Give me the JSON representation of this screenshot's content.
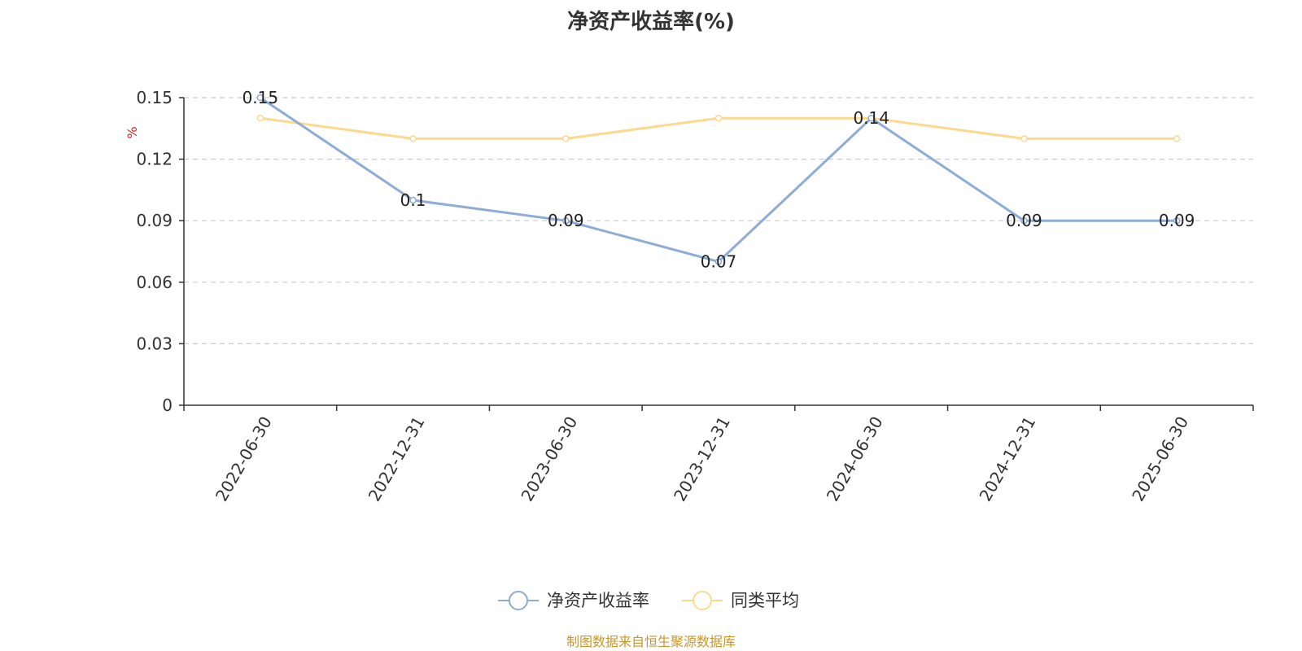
{
  "chart_data": {
    "type": "line",
    "title": "净资产收益率(%)",
    "ylabel": "%",
    "xlabel": "",
    "categories": [
      "2022-06-30",
      "2022-12-31",
      "2023-06-30",
      "2023-12-31",
      "2024-06-30",
      "2024-12-31",
      "2025-06-30"
    ],
    "ylim": [
      0,
      0.15
    ],
    "yticks": [
      "0",
      "0.03",
      "0.06",
      "0.09",
      "0.12",
      "0.15"
    ],
    "grid": true,
    "legend_position": "bottom",
    "series": [
      {
        "name": "净资产收益率",
        "values": [
          0.15,
          0.1,
          0.09,
          0.07,
          0.14,
          0.09,
          0.09
        ],
        "data_labels": [
          "0.15",
          "0.1",
          "0.09",
          "0.07",
          "0.14",
          "0.09",
          "0.09"
        ],
        "color": "#8eacd6"
      },
      {
        "name": "同类平均",
        "values": [
          0.14,
          0.13,
          0.13,
          0.14,
          0.14,
          0.13,
          0.13
        ],
        "color": "#fcd98e"
      }
    ]
  },
  "source": "制图数据来自恒生聚源数据库",
  "colors": {
    "ylabel": "#e02020",
    "axis": "#333333",
    "grid": "#cccccc",
    "source": "#c8962a"
  }
}
